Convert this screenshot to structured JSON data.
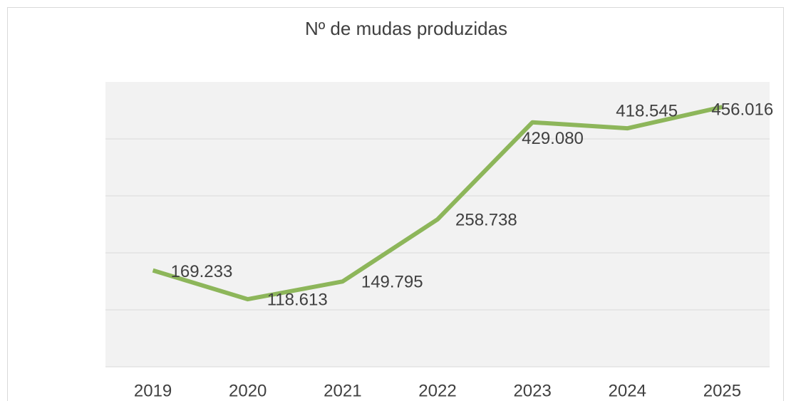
{
  "chart_data": {
    "type": "line",
    "title": "Nº de mudas produzidas",
    "categories": [
      "2019",
      "2020",
      "2021",
      "2022",
      "2023",
      "2024",
      "2025"
    ],
    "series": [
      {
        "color": "#8db65a",
        "values": [
          169233,
          118613,
          149795,
          258738,
          429080,
          418545,
          456016
        ],
        "value_labels": [
          "169.233",
          "118.613",
          "149.795",
          "258.738",
          "429.080",
          "418.545",
          "456.016"
        ]
      }
    ],
    "ylim": [
      0,
      500000
    ],
    "yticks": [
      0,
      100000,
      200000,
      300000,
      400000,
      500000
    ],
    "grid": true
  }
}
